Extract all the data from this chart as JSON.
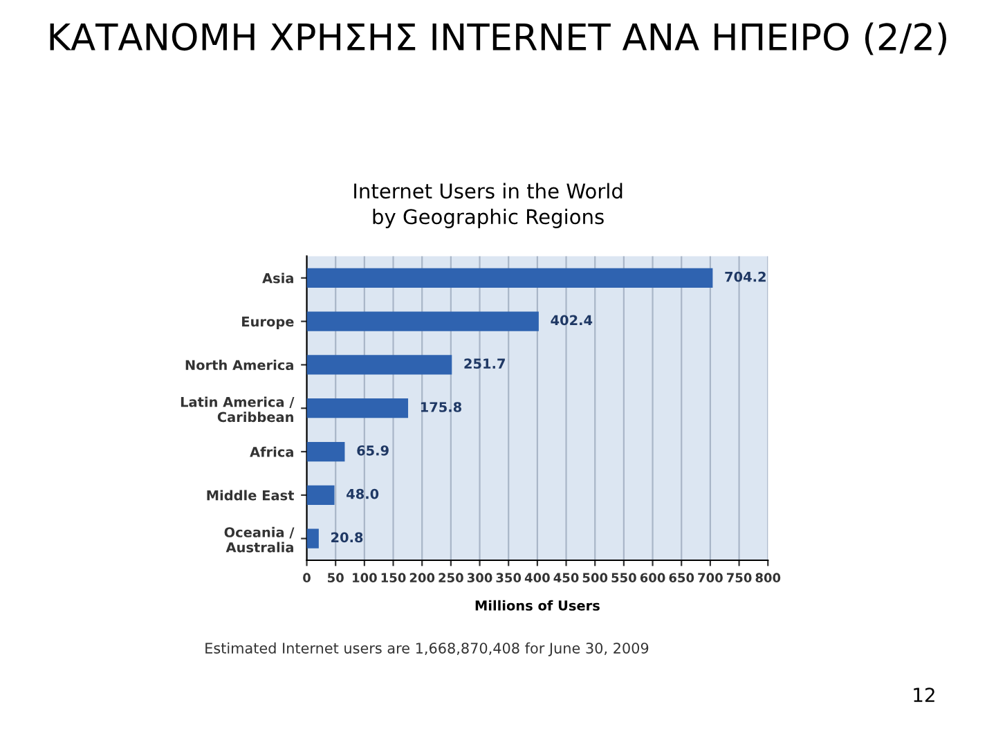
{
  "chart_data": {
    "type": "bar",
    "orientation": "horizontal",
    "title": "ΚΑΤΑΝΟΜΗ ΧΡΗΣΗΣ INTERNET ΑΝΑ ΗΠΕΙΡΟ (2/2)",
    "subtitle": "Internet Users in the World\nby Geographic Regions",
    "xlabel": "Millions of Users",
    "categories": [
      "Asia",
      "Europe",
      "North America",
      "Latin America /\nCaribbean",
      "Africa",
      "Middle East",
      "Oceania /\nAustralia"
    ],
    "values": [
      704.2,
      402.4,
      251.7,
      175.8,
      65.9,
      48.0,
      20.8
    ],
    "value_labels": [
      "704.2",
      "402.4",
      "251.7",
      "175.8",
      "65.9",
      "48.0",
      "20.8"
    ],
    "color": "#2f63b0",
    "xlim": [
      0,
      800
    ],
    "xticks": [
      0,
      50,
      100,
      150,
      200,
      250,
      300,
      350,
      400,
      450,
      500,
      550,
      600,
      650,
      700,
      750,
      800
    ],
    "grid": "x",
    "annotations": [
      "Estimated Internet users are 1,668,870,408 for June 30, 2009",
      "12"
    ]
  }
}
